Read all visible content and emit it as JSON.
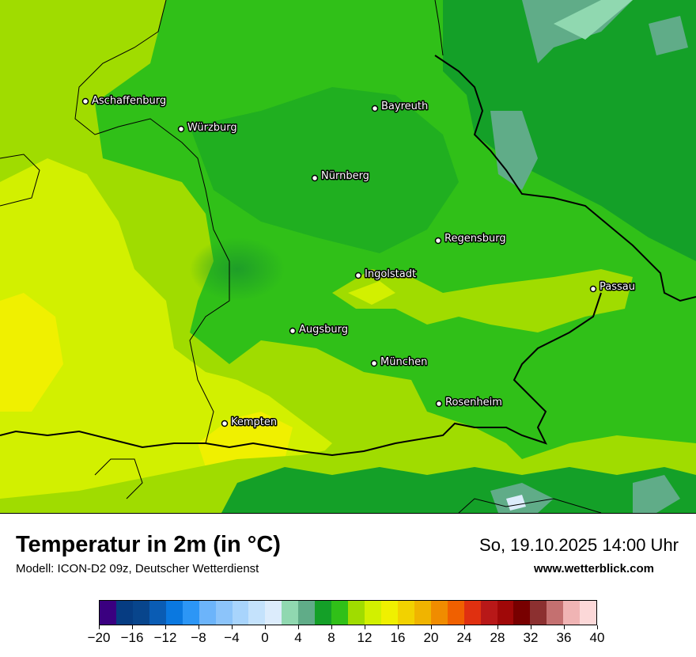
{
  "title": "Temperatur in 2m (in °C)",
  "subtitle": "Modell: ICON-D2 09z, Deutscher Wetterdienst",
  "datetime": "So, 19.10.2025 14:00 Uhr",
  "website": "www.wetterblick.com",
  "cities": [
    {
      "name": "Aschaffenburg"
    },
    {
      "name": "Bayreuth"
    },
    {
      "name": "Würzburg"
    },
    {
      "name": "Nürnberg"
    },
    {
      "name": "Regensburg"
    },
    {
      "name": "Ingolstadt"
    },
    {
      "name": "Passau"
    },
    {
      "name": "Augsburg"
    },
    {
      "name": "München"
    },
    {
      "name": "Rosenheim"
    },
    {
      "name": "Kempten"
    }
  ],
  "legend": {
    "colors": [
      "#3a0080",
      "#063c82",
      "#08458c",
      "#0a5cb4",
      "#0a78e0",
      "#2c96f6",
      "#6cb4fa",
      "#8cc4fa",
      "#a8d4fc",
      "#c4e2fc",
      "#dcecfc",
      "#90d8b0",
      "#60ac88",
      "#14a028",
      "#30c018",
      "#a0dc00",
      "#d2f000",
      "#f0f000",
      "#f2d200",
      "#f0b400",
      "#f08c00",
      "#f06000",
      "#e03010",
      "#b81818",
      "#a00808",
      "#780000",
      "#8c3030",
      "#c47070",
      "#f0b4b4",
      "#fcd8d8"
    ],
    "tick_labels": [
      "−20",
      "−16",
      "−12",
      "−8",
      "−4",
      "0",
      "4",
      "8",
      "12",
      "16",
      "20",
      "24",
      "28",
      "32",
      "36",
      "40"
    ]
  }
}
